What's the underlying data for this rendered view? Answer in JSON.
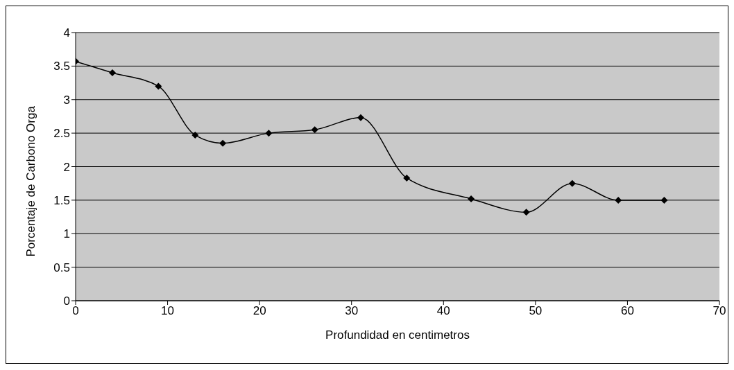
{
  "chart_data": {
    "type": "line",
    "xlabel": "Profundidad en centimetros",
    "ylabel": "Porcentaje de Carbono Orga",
    "x": [
      0,
      4,
      9,
      13,
      16,
      21,
      26,
      31,
      36,
      43,
      49,
      54,
      59,
      64
    ],
    "series": [
      {
        "color": "#000000",
        "values": [
          3.57,
          3.4,
          3.2,
          2.47,
          2.35,
          2.5,
          2.55,
          2.73,
          1.83,
          1.52,
          1.32,
          1.75,
          1.5,
          1.5
        ]
      }
    ],
    "xlim": [
      0,
      70
    ],
    "xticks": [
      0,
      10,
      20,
      30,
      40,
      50,
      60,
      70
    ],
    "ylim": [
      0,
      4
    ],
    "yticks": [
      0,
      0.5,
      1,
      1.5,
      2,
      2.5,
      3,
      3.5,
      4
    ],
    "grid": "y",
    "legend": false,
    "marker": "diamond",
    "line_style": "solid"
  }
}
